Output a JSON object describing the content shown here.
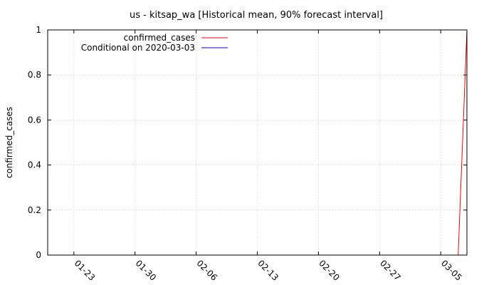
{
  "chart_data": {
    "type": "line",
    "title": "us - kitsap_wa [Historical mean, 90% forecast interval]",
    "xlabel": "",
    "ylabel": "confirmed_cases",
    "x_ticks": [
      "01-23",
      "01-30",
      "02-06",
      "02-13",
      "02-20",
      "02-27",
      "03-05"
    ],
    "xlim": [
      "2020-01-20",
      "2020-03-08"
    ],
    "ylim": [
      0,
      1
    ],
    "y_ticks": [
      "0",
      "0.2",
      "0.4",
      "0.6",
      "0.8",
      "1"
    ],
    "grid": true,
    "legend_position": "top-left",
    "series": [
      {
        "name": "confirmed_cases",
        "color": "#ff0000",
        "x": [
          "2020-03-07",
          "2020-03-08"
        ],
        "y": [
          0,
          1
        ]
      },
      {
        "name": "Conditional on 2020-03-03",
        "color": "#0000cc",
        "x": [],
        "y": []
      }
    ]
  }
}
